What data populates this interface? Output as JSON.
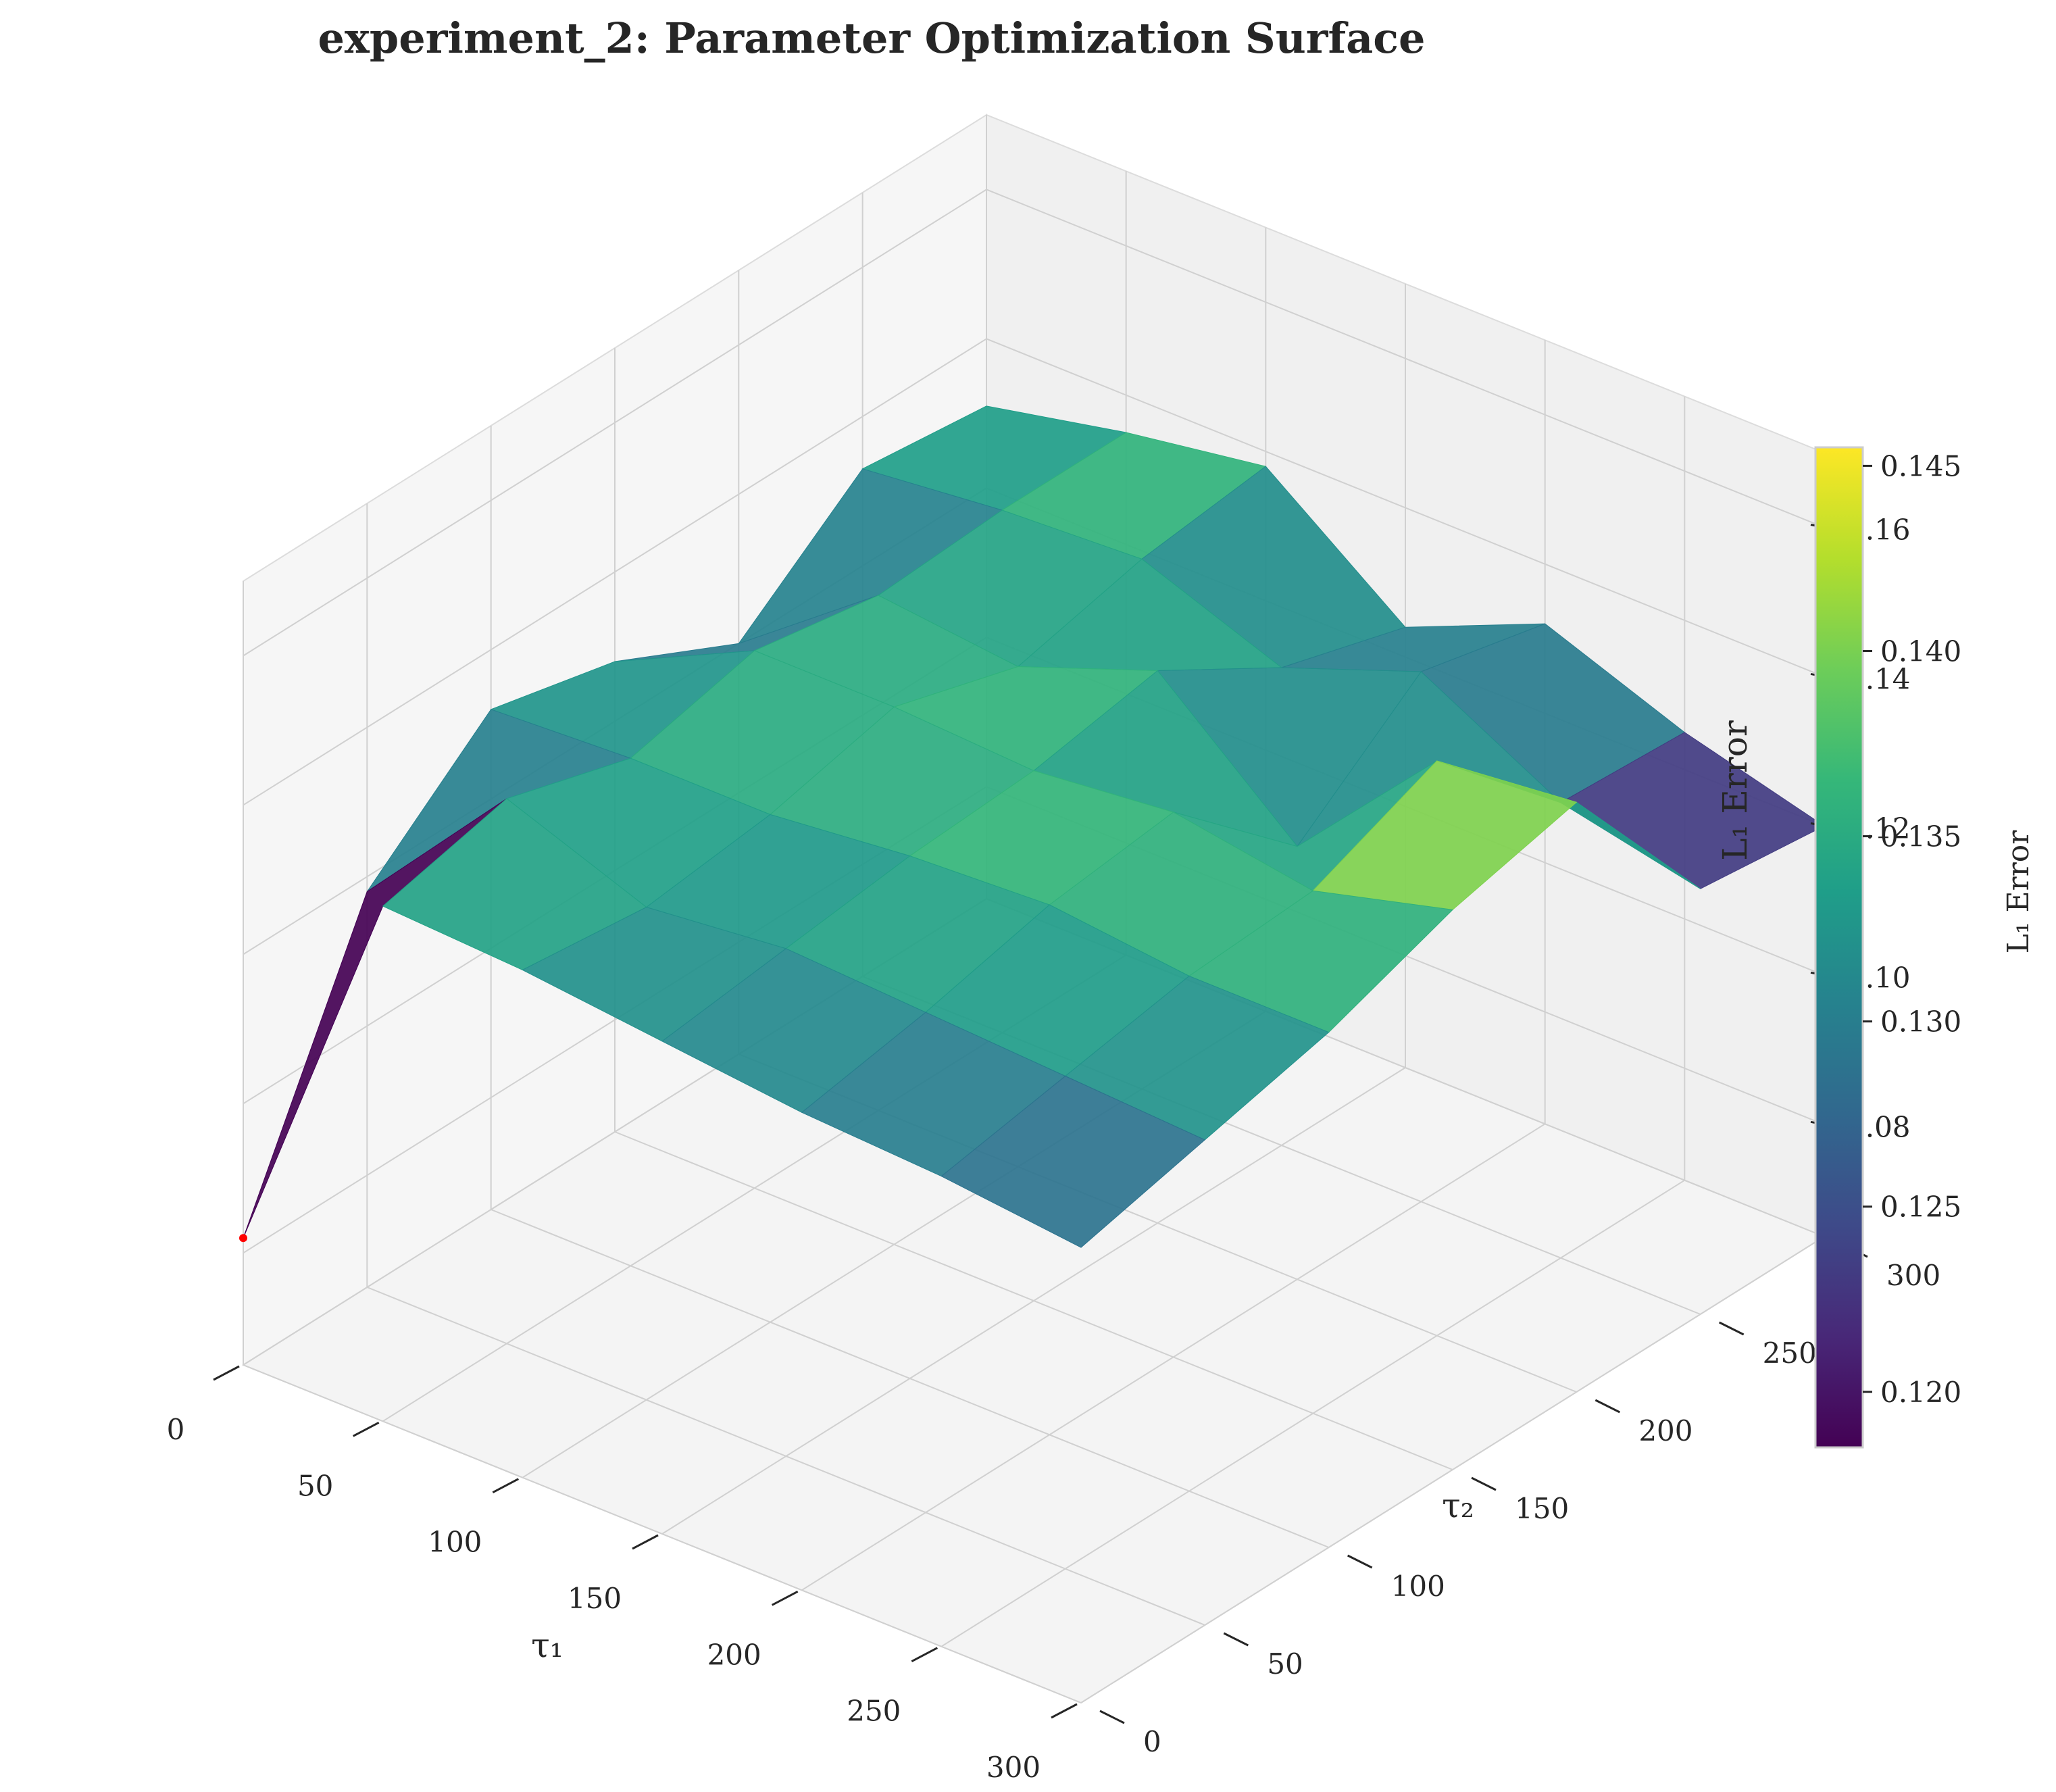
{
  "chart_data": {
    "type": "surface3d",
    "title": "experiment_2: Parameter Optimization Surface",
    "xlabel": "τ₁",
    "ylabel": "τ₂",
    "zlabel": "L₁ Error",
    "colorbar_label": "L₁ Error",
    "colormap": "viridis",
    "x_ticks": [
      "0",
      "50",
      "100",
      "150",
      "200",
      "250",
      "300"
    ],
    "y_ticks": [
      "0",
      "50",
      "100",
      "150",
      "200",
      "250",
      "300"
    ],
    "z_ticks": [
      "0.08",
      "0.10",
      "0.12",
      "0.14",
      "0.16"
    ],
    "colorbar_ticks": [
      "0.120",
      "0.125",
      "0.130",
      "0.135",
      "0.140",
      "0.145"
    ],
    "xlim": [
      0,
      300
    ],
    "ylim": [
      0,
      300
    ],
    "zlim": [
      0.065,
      0.17
    ],
    "color_range": [
      0.1185,
      0.1455
    ],
    "x": [
      0,
      50,
      100,
      150,
      200,
      250,
      300
    ],
    "y": [
      0,
      50,
      100,
      150,
      200,
      250,
      300
    ],
    "z": [
      [
        0.082,
        0.118,
        0.132,
        0.128,
        0.12,
        0.133,
        0.131
      ],
      [
        0.134,
        0.138,
        0.133,
        0.137,
        0.134,
        0.135,
        0.135
      ],
      [
        0.133,
        0.131,
        0.133,
        0.137,
        0.132,
        0.136,
        0.138
      ],
      [
        0.131,
        0.133,
        0.135,
        0.136,
        0.139,
        0.129,
        0.124
      ],
      [
        0.129,
        0.132,
        0.136,
        0.138,
        0.123,
        0.136,
        0.132
      ],
      [
        0.128,
        0.131,
        0.134,
        0.135,
        0.142,
        0.126,
        0.125
      ],
      [
        0.126,
        0.13,
        0.134,
        0.14,
        0.144,
        0.122,
        0.12
      ]
    ],
    "best_point": {
      "x": 0,
      "y": 0,
      "z": 0.082,
      "color": "#ff0000"
    },
    "grid": true,
    "pane_color": "#f2f2f2",
    "grid_color": "#d0d0d0"
  }
}
